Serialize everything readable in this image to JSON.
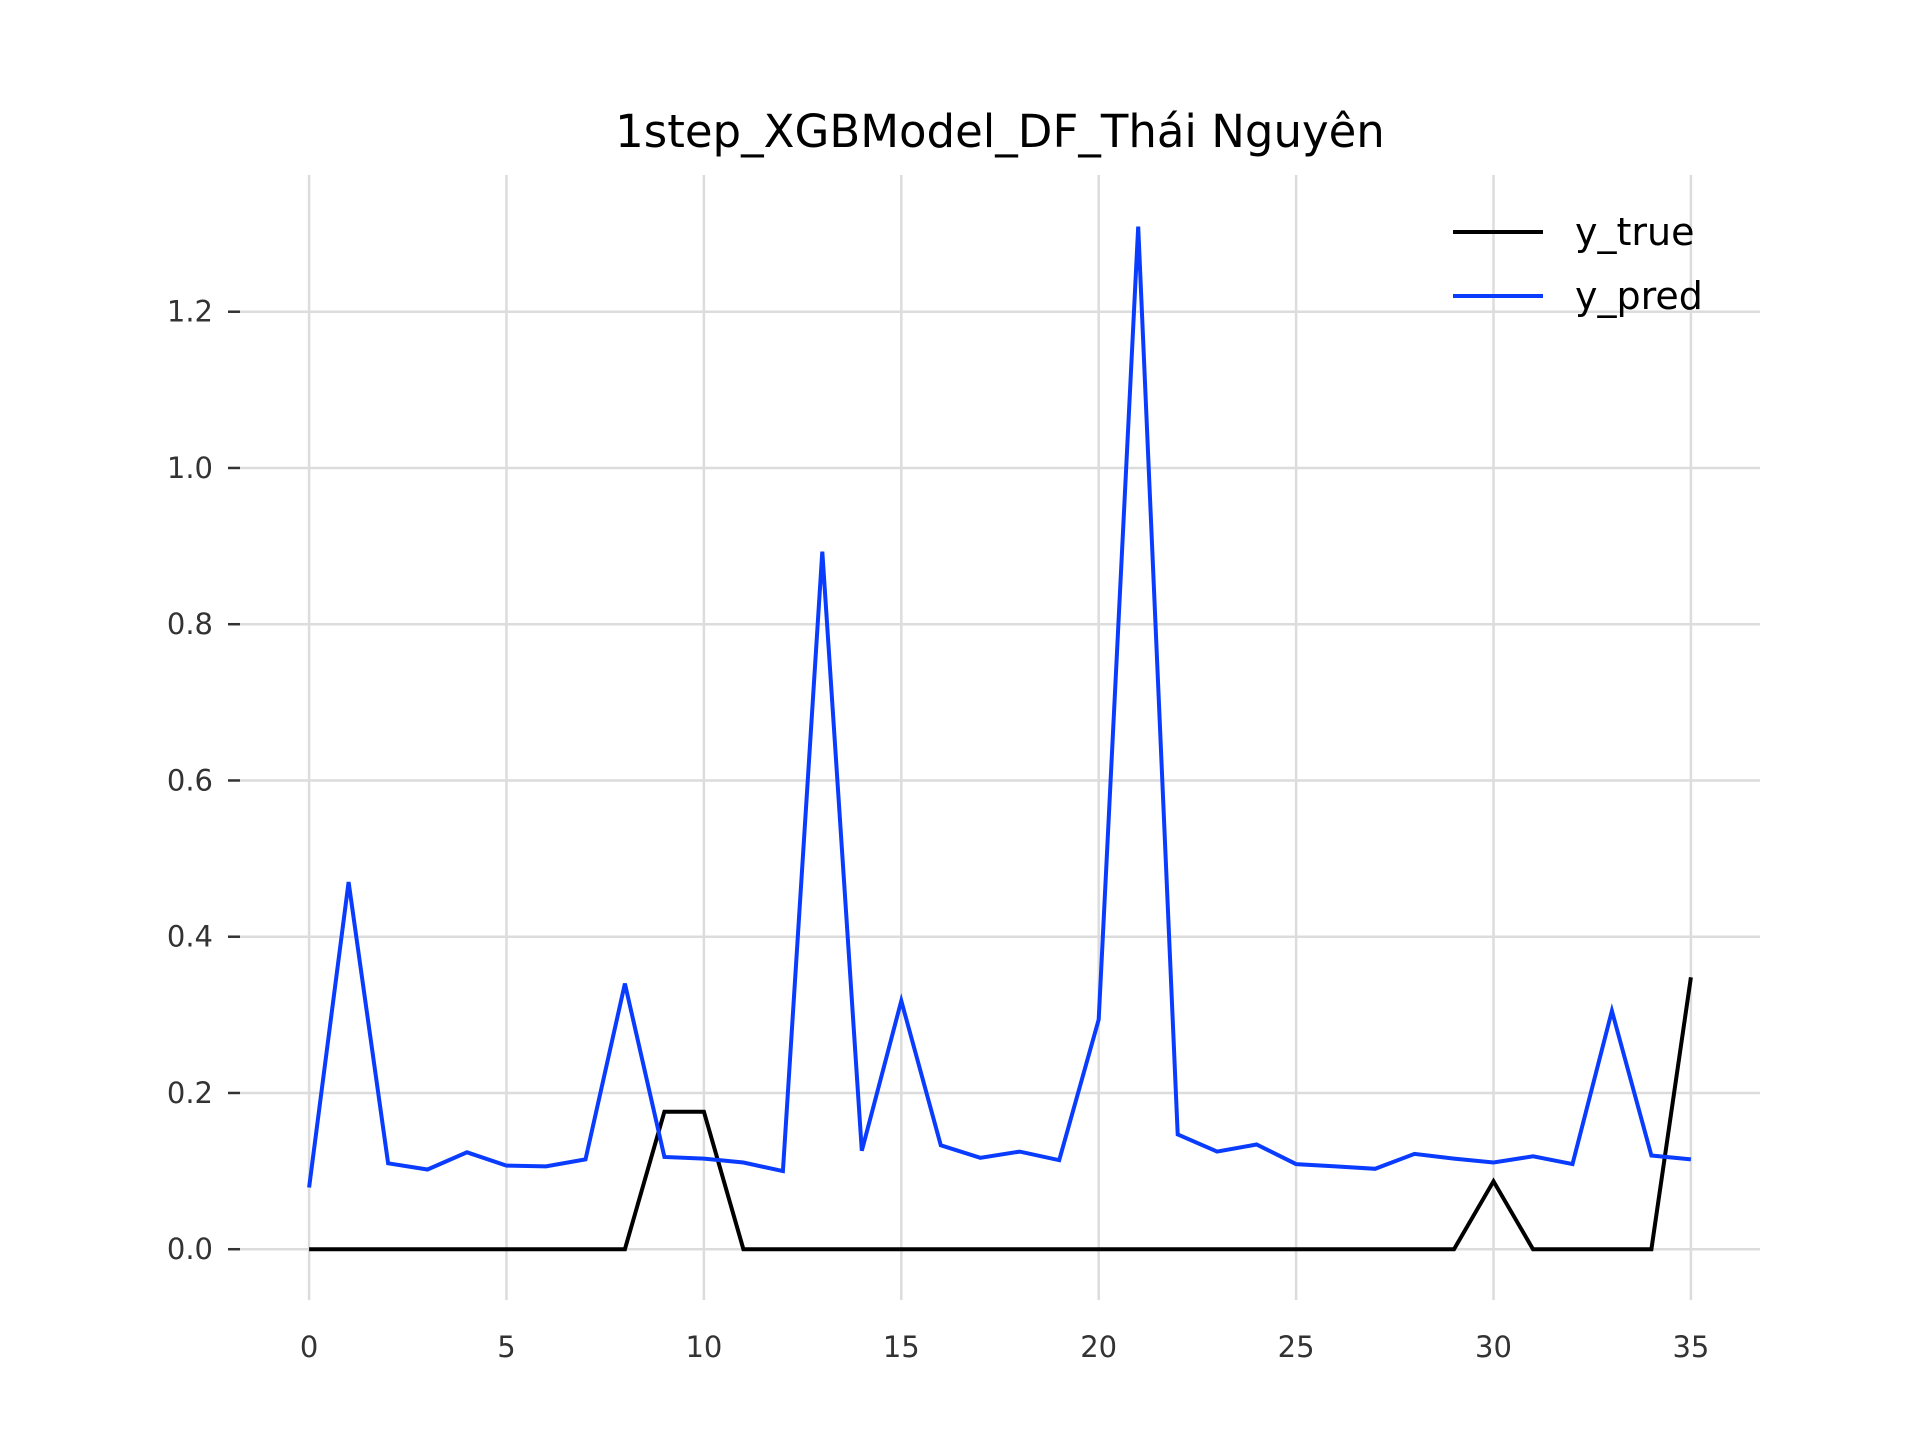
{
  "chart_data": {
    "type": "line",
    "title": "1step_XGBModel_DF_Thái Nguyên",
    "xlabel": "",
    "ylabel": "",
    "xlim": [
      -1.75,
      36.75
    ],
    "ylim": [
      -0.065,
      1.375
    ],
    "xticks": [
      0,
      5,
      10,
      15,
      20,
      25,
      30,
      35
    ],
    "xtick_labels": [
      "0",
      "5",
      "10",
      "15",
      "20",
      "25",
      "30",
      "35"
    ],
    "yticks": [
      0.0,
      0.2,
      0.4,
      0.6,
      0.8,
      1.0,
      1.2
    ],
    "ytick_labels": [
      "0.0",
      "0.2",
      "0.4",
      "0.6",
      "0.8",
      "1.0",
      "1.2"
    ],
    "grid": true,
    "legend_position": "upper-right",
    "x": [
      0,
      1,
      2,
      3,
      4,
      5,
      6,
      7,
      8,
      9,
      10,
      11,
      12,
      13,
      14,
      15,
      16,
      17,
      18,
      19,
      20,
      21,
      22,
      23,
      24,
      25,
      26,
      27,
      28,
      29,
      30,
      31,
      32,
      33,
      34,
      35
    ],
    "series": [
      {
        "name": "y_true",
        "color": "#000000",
        "values": [
          0,
          0,
          0,
          0,
          0,
          0,
          0,
          0,
          0,
          0.176,
          0.176,
          0,
          0,
          0,
          0,
          0,
          0,
          0,
          0,
          0,
          0,
          0,
          0,
          0,
          0,
          0,
          0,
          0,
          0,
          0,
          0.087,
          0,
          0,
          0,
          0,
          0.348
        ]
      },
      {
        "name": "y_pred",
        "color": "#0a3cff",
        "values": [
          0.079,
          0.47,
          0.11,
          0.102,
          0.124,
          0.107,
          0.106,
          0.115,
          0.34,
          0.118,
          0.116,
          0.111,
          0.1,
          0.893,
          0.126,
          0.318,
          0.133,
          0.117,
          0.125,
          0.114,
          0.294,
          1.309,
          0.147,
          0.125,
          0.134,
          0.109,
          0.106,
          0.103,
          0.122,
          0.116,
          0.111,
          0.119,
          0.109,
          0.305,
          0.12,
          0.115
        ]
      }
    ]
  }
}
